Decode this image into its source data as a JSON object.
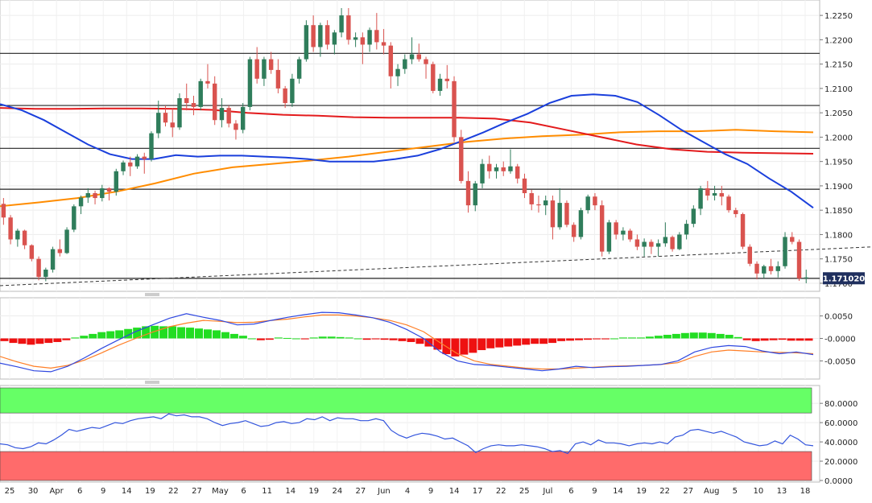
{
  "chart_data": [
    {
      "type": "candlestick",
      "pair_panel": "price",
      "y_ticks": [
        "1.2250",
        "1.2200",
        "1.2150",
        "1.2100",
        "1.2050",
        "1.2000",
        "1.1950",
        "1.1900",
        "1.1850",
        "1.1800",
        "1.1750",
        "1.1700"
      ],
      "ylim": [
        1.169,
        1.2275
      ],
      "last_price_label": "1.171020",
      "last_price": 1.17102,
      "horizontal_levels": [
        1.2172,
        1.2065,
        1.1977,
        1.1893,
        1.171
      ],
      "trendline": {
        "x": [
          0,
          144
        ],
        "y": [
          1.1695,
          1.1788
        ]
      },
      "colors": {
        "up": "#2f7d5b",
        "down": "#d9534f",
        "sma_fast": "#1a3fdc",
        "sma_mid": "#e31a1c",
        "sma_slow": "#ff8c00",
        "levels": "#222222"
      },
      "candles": [
        [
          1.1863,
          1.1875,
          1.182,
          1.1835
        ],
        [
          1.1835,
          1.184,
          1.178,
          1.179
        ],
        [
          1.179,
          1.1812,
          1.1775,
          1.1808
        ],
        [
          1.1808,
          1.181,
          1.177,
          1.1778
        ],
        [
          1.1778,
          1.178,
          1.1745,
          1.175
        ],
        [
          1.175,
          1.1755,
          1.1706,
          1.1713
        ],
        [
          1.1713,
          1.1732,
          1.1704,
          1.1728
        ],
        [
          1.1728,
          1.1775,
          1.1722,
          1.177
        ],
        [
          1.177,
          1.179,
          1.1755,
          1.1762
        ],
        [
          1.1762,
          1.1815,
          1.176,
          1.181
        ],
        [
          1.181,
          1.1862,
          1.1805,
          1.1858
        ],
        [
          1.1858,
          1.188,
          1.1842,
          1.1876
        ],
        [
          1.1876,
          1.1895,
          1.1865,
          1.1885
        ],
        [
          1.1885,
          1.189,
          1.1862,
          1.1875
        ],
        [
          1.1875,
          1.1902,
          1.1868,
          1.1895
        ],
        [
          1.1895,
          1.1897,
          1.187,
          1.1888
        ],
        [
          1.1888,
          1.1935,
          1.188,
          1.193
        ],
        [
          1.193,
          1.1952,
          1.1922,
          1.1948
        ],
        [
          1.1948,
          1.196,
          1.192,
          1.194
        ],
        [
          1.194,
          1.1965,
          1.1935,
          1.196
        ],
        [
          1.196,
          1.1968,
          1.1925,
          1.1955
        ],
        [
          1.1955,
          1.2012,
          1.195,
          1.2008
        ],
        [
          1.2008,
          1.2075,
          1.1998,
          1.205
        ],
        [
          1.205,
          1.2065,
          1.2022,
          1.203
        ],
        [
          1.203,
          1.206,
          1.2,
          1.202
        ],
        [
          1.202,
          1.209,
          1.2015,
          1.208
        ],
        [
          1.208,
          1.211,
          1.2055,
          1.207
        ],
        [
          1.207,
          1.2085,
          1.2045,
          1.2062
        ],
        [
          1.2062,
          1.212,
          1.2055,
          1.2115
        ],
        [
          1.2115,
          1.215,
          1.21,
          1.211
        ],
        [
          1.211,
          1.2125,
          1.2025,
          1.2035
        ],
        [
          1.2035,
          1.208,
          1.202,
          1.206
        ],
        [
          1.206,
          1.2065,
          1.202,
          1.2028
        ],
        [
          1.2028,
          1.2035,
          1.1995,
          1.2015
        ],
        [
          1.2015,
          1.207,
          1.2008,
          1.2062
        ],
        [
          1.2062,
          1.2165,
          1.2055,
          1.216
        ],
        [
          1.216,
          1.2185,
          1.211,
          1.212
        ],
        [
          1.212,
          1.2165,
          1.2105,
          1.216
        ],
        [
          1.216,
          1.2175,
          1.213,
          1.2138
        ],
        [
          1.2138,
          1.216,
          1.209,
          1.21
        ],
        [
          1.21,
          1.2105,
          1.206,
          1.207
        ],
        [
          1.207,
          1.213,
          1.2062,
          1.212
        ],
        [
          1.212,
          1.2165,
          1.211,
          1.216
        ],
        [
          1.216,
          1.224,
          1.2155,
          1.223
        ],
        [
          1.223,
          1.225,
          1.2175,
          1.2185
        ],
        [
          1.2185,
          1.2235,
          1.2165,
          1.223
        ],
        [
          1.223,
          1.224,
          1.218,
          1.219
        ],
        [
          1.219,
          1.222,
          1.217,
          1.2215
        ],
        [
          1.2215,
          1.2265,
          1.2205,
          1.225
        ],
        [
          1.225,
          1.2265,
          1.219,
          1.22
        ],
        [
          1.22,
          1.2215,
          1.2185,
          1.2205
        ],
        [
          1.2205,
          1.2215,
          1.215,
          1.219
        ],
        [
          1.219,
          1.2225,
          1.2175,
          1.222
        ],
        [
          1.222,
          1.2255,
          1.218,
          1.2195
        ],
        [
          1.2195,
          1.2222,
          1.217,
          1.2188
        ],
        [
          1.2188,
          1.2195,
          1.21,
          1.2125
        ],
        [
          1.2125,
          1.215,
          1.2105,
          1.214
        ],
        [
          1.214,
          1.217,
          1.213,
          1.216
        ],
        [
          1.216,
          1.2205,
          1.215,
          1.217
        ],
        [
          1.217,
          1.2192,
          1.2155,
          1.216
        ],
        [
          1.216,
          1.2165,
          1.212,
          1.215
        ],
        [
          1.215,
          1.2155,
          1.209,
          1.2095
        ],
        [
          1.2095,
          1.213,
          1.2085,
          1.212
        ],
        [
          1.212,
          1.2148,
          1.21,
          1.2115
        ],
        [
          1.2115,
          1.2125,
          1.199,
          1.2
        ],
        [
          1.2,
          1.2015,
          1.1905,
          1.191
        ],
        [
          1.191,
          1.193,
          1.1845,
          1.186
        ],
        [
          1.186,
          1.191,
          1.1848,
          1.1905
        ],
        [
          1.1905,
          1.1955,
          1.1895,
          1.1945
        ],
        [
          1.1945,
          1.1962,
          1.1915,
          1.193
        ],
        [
          1.193,
          1.1945,
          1.1915,
          1.1938
        ],
        [
          1.1938,
          1.195,
          1.192,
          1.193
        ],
        [
          1.193,
          1.1975,
          1.1925,
          1.194
        ],
        [
          1.194,
          1.1945,
          1.1905,
          1.1915
        ],
        [
          1.1915,
          1.1925,
          1.1875,
          1.1885
        ],
        [
          1.1885,
          1.1892,
          1.185,
          1.1862
        ],
        [
          1.1862,
          1.188,
          1.1845,
          1.186
        ],
        [
          1.186,
          1.188,
          1.184,
          1.187
        ],
        [
          1.187,
          1.188,
          1.179,
          1.1815
        ],
        [
          1.1815,
          1.1895,
          1.181,
          1.1865
        ],
        [
          1.1865,
          1.187,
          1.1815,
          1.182
        ],
        [
          1.182,
          1.1825,
          1.1785,
          1.1795
        ],
        [
          1.1795,
          1.1855,
          1.179,
          1.185
        ],
        [
          1.185,
          1.1882,
          1.1843,
          1.1878
        ],
        [
          1.1878,
          1.1885,
          1.185,
          1.186
        ],
        [
          1.186,
          1.187,
          1.1755,
          1.1765
        ],
        [
          1.1765,
          1.183,
          1.176,
          1.1825
        ],
        [
          1.1825,
          1.183,
          1.179,
          1.18
        ],
        [
          1.18,
          1.1815,
          1.1788,
          1.1808
        ],
        [
          1.1808,
          1.1812,
          1.1785,
          1.179
        ],
        [
          1.179,
          1.18,
          1.1768,
          1.1775
        ],
        [
          1.1775,
          1.1792,
          1.1755,
          1.1785
        ],
        [
          1.1785,
          1.179,
          1.176,
          1.1775
        ],
        [
          1.1775,
          1.179,
          1.1755,
          1.1782
        ],
        [
          1.1782,
          1.1825,
          1.1775,
          1.1795
        ],
        [
          1.1795,
          1.1798,
          1.1765,
          1.177
        ],
        [
          1.177,
          1.1805,
          1.1768,
          1.18
        ],
        [
          1.18,
          1.183,
          1.179,
          1.1822
        ],
        [
          1.1822,
          1.186,
          1.1815,
          1.1853
        ],
        [
          1.1853,
          1.19,
          1.184,
          1.1895
        ],
        [
          1.1895,
          1.191,
          1.187,
          1.188
        ],
        [
          1.188,
          1.19,
          1.187,
          1.1885
        ],
        [
          1.1885,
          1.19,
          1.186,
          1.1878
        ],
        [
          1.1878,
          1.1882,
          1.1845,
          1.185
        ],
        [
          1.185,
          1.1855,
          1.1835,
          1.1842
        ],
        [
          1.1842,
          1.1845,
          1.177,
          1.1775
        ],
        [
          1.1775,
          1.178,
          1.1735,
          1.174
        ],
        [
          1.174,
          1.1745,
          1.1708,
          1.172
        ],
        [
          1.172,
          1.1738,
          1.171,
          1.1735
        ],
        [
          1.1735,
          1.175,
          1.1718,
          1.1725
        ],
        [
          1.1725,
          1.1745,
          1.1712,
          1.1735
        ],
        [
          1.1735,
          1.1805,
          1.173,
          1.1795
        ],
        [
          1.1795,
          1.1805,
          1.178,
          1.1785
        ],
        [
          1.1785,
          1.179,
          1.1705,
          1.171
        ],
        [
          1.171,
          1.1728,
          1.17,
          1.1712
        ]
      ],
      "sma_fast": [
        1.2068,
        1.2055,
        1.2035,
        1.201,
        1.1985,
        1.1965,
        1.1955,
        1.1955,
        1.1963,
        1.196,
        1.1962,
        1.1962,
        1.196,
        1.1958,
        1.1955,
        1.195,
        1.195,
        1.195,
        1.1955,
        1.1962,
        1.1975,
        1.1992,
        1.201,
        1.203,
        1.2048,
        1.207,
        1.2085,
        1.2088,
        1.2085,
        1.2072,
        1.2045,
        1.2015,
        1.199,
        1.1965,
        1.1945,
        1.1915,
        1.1888,
        1.1855
      ],
      "sma_mid": [
        1.206,
        1.2058,
        1.2058,
        1.2059,
        1.2059,
        1.2058,
        1.2056,
        1.205,
        1.2046,
        1.2044,
        1.2041,
        1.204,
        1.204,
        1.204,
        1.2038,
        1.203,
        1.2015,
        1.2,
        1.1985,
        1.1975,
        1.197,
        1.1968,
        1.1967,
        1.1966
      ],
      "sma_slow": [
        1.1858,
        1.1866,
        1.1875,
        1.1888,
        1.1905,
        1.1925,
        1.1938,
        1.1945,
        1.1952,
        1.196,
        1.197,
        1.198,
        1.199,
        1.1997,
        1.2002,
        1.2005,
        1.201,
        1.2012,
        1.2012,
        1.2015,
        1.2012,
        1.201
      ]
    },
    {
      "type": "macd",
      "y_ticks": [
        "0.0050",
        "-0.0000",
        "-0.0050"
      ],
      "ylim": [
        -0.0085,
        0.0085
      ],
      "histogram": [
        -0.0006,
        -0.001,
        -0.0012,
        -0.0014,
        -0.0012,
        -0.001,
        -0.0008,
        -0.0004,
        0.0002,
        0.0006,
        0.001,
        0.0014,
        0.0016,
        0.0018,
        0.0021,
        0.0024,
        0.0027,
        0.0028,
        0.0027,
        0.0027,
        0.0025,
        0.0024,
        0.0022,
        0.002,
        0.0018,
        0.0014,
        0.001,
        0.0006,
        0.0,
        -0.0004,
        -0.0003,
        0.0002,
        0.0001,
        0.0,
        -0.0002,
        0.0002,
        0.0004,
        0.0004,
        0.0003,
        0.0002,
        0.0,
        -0.0003,
        -0.0002,
        -0.0003,
        -0.0004,
        -0.0006,
        -0.0008,
        -0.0012,
        -0.0018,
        -0.0025,
        -0.0035,
        -0.004,
        -0.0036,
        -0.0032,
        -0.0026,
        -0.0022,
        -0.002,
        -0.0018,
        -0.0016,
        -0.0014,
        -0.0012,
        -0.0012,
        -0.001,
        -0.0006,
        -0.0005,
        -0.0004,
        -0.0003,
        -0.0002,
        -0.0002,
        0.0,
        0.0002,
        0.0002,
        0.0002,
        0.0004,
        0.0006,
        0.0008,
        0.001,
        0.0012,
        0.0013,
        0.0013,
        0.0012,
        0.001,
        0.0008,
        0.0003,
        -0.0004,
        -0.0006,
        -0.0005,
        -0.0004,
        -0.0003,
        -0.0005,
        -0.0005,
        -0.0005
      ],
      "macd_line": [
        -0.0055,
        -0.0063,
        -0.0072,
        -0.0074,
        -0.0062,
        -0.0043,
        -0.0022,
        -0.0003,
        0.0015,
        0.003,
        0.0045,
        0.0055,
        0.0047,
        0.004,
        0.003,
        0.0032,
        0.004,
        0.0047,
        0.0053,
        0.0058,
        0.0057,
        0.0052,
        0.0046,
        0.0036,
        0.002,
        0.0,
        -0.003,
        -0.005,
        -0.0058,
        -0.006,
        -0.0064,
        -0.0068,
        -0.0072,
        -0.0068,
        -0.0062,
        -0.0065,
        -0.0063,
        -0.0062,
        -0.006,
        -0.0058,
        -0.005,
        -0.003,
        -0.002,
        -0.0016,
        -0.0018,
        -0.0028,
        -0.0034,
        -0.003,
        -0.0036
      ],
      "signal_line": [
        -0.004,
        -0.0052,
        -0.0062,
        -0.0066,
        -0.006,
        -0.0048,
        -0.0032,
        -0.0015,
        0.0,
        0.0014,
        0.0026,
        0.0034,
        0.004,
        0.0038,
        0.0035,
        0.0036,
        0.004,
        0.0043,
        0.0048,
        0.0052,
        0.0052,
        0.005,
        0.0046,
        0.004,
        0.003,
        0.0015,
        -0.001,
        -0.0034,
        -0.005,
        -0.0058,
        -0.0062,
        -0.0066,
        -0.0068,
        -0.0068,
        -0.0066,
        -0.0064,
        -0.0062,
        -0.0061,
        -0.006,
        -0.0058,
        -0.0054,
        -0.004,
        -0.003,
        -0.0026,
        -0.0028,
        -0.003,
        -0.0031,
        -0.0032,
        -0.0034
      ],
      "colors": {
        "positive": "#22dd22",
        "negative": "#ee1111",
        "macd": "#2e47e0",
        "signal": "#ff7f27"
      }
    },
    {
      "type": "rsi",
      "y_ticks": [
        "80.0000",
        "60.0000",
        "40.0000",
        "20.0000",
        "0.0000"
      ],
      "ylim": [
        0,
        96
      ],
      "overbought": 70,
      "oversold": 30,
      "values": [
        38,
        37,
        34,
        33,
        35,
        39,
        38,
        42,
        47,
        53,
        51,
        53,
        55,
        54,
        57,
        60,
        59,
        62,
        64,
        65,
        66,
        64,
        69,
        67,
        68,
        66,
        66,
        64,
        60,
        57,
        59,
        60,
        62,
        59,
        56,
        57,
        60,
        61,
        59,
        60,
        64,
        63,
        66,
        62,
        65,
        64,
        64,
        62,
        62,
        64,
        62,
        52,
        47,
        44,
        47,
        49,
        48,
        46,
        43,
        44,
        40,
        36,
        29,
        33,
        36,
        37,
        36,
        36,
        37,
        36,
        35,
        33,
        30,
        31,
        28,
        38,
        40,
        37,
        42,
        39,
        39,
        38,
        36,
        38,
        39,
        38,
        40,
        38,
        45,
        47,
        52,
        53,
        51,
        49,
        51,
        48,
        45,
        40,
        38,
        36,
        37,
        41,
        38,
        47,
        43,
        37,
        36
      ],
      "colors": {
        "line": "#3355dd",
        "overbought_zone": "#66ff66",
        "oversold_zone": "#ff6b6b"
      }
    }
  ],
  "x_axis": {
    "labels": [
      "25",
      "30",
      "Apr",
      "6",
      "9",
      "14",
      "19",
      "22",
      "27",
      "May",
      "6",
      "11",
      "14",
      "19",
      "24",
      "27",
      "Jun",
      "4",
      "9",
      "14",
      "17",
      "22",
      "25",
      "Jul",
      "6",
      "9",
      "14",
      "19",
      "22",
      "27",
      "Aug",
      "5",
      "10",
      "13",
      "18"
    ]
  }
}
